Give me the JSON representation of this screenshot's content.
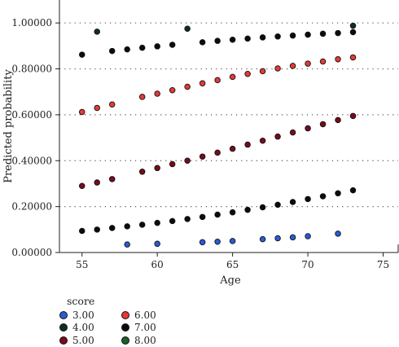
{
  "chart_data": {
    "type": "scatter",
    "xlabel": "Age",
    "ylabel": "Predicted probability",
    "xlim": [
      53.5,
      76
    ],
    "ylim": [
      0,
      1.1
    ],
    "xticks": [
      55,
      60,
      65,
      70,
      75
    ],
    "yticks": [
      0,
      0.2,
      0.4,
      0.6,
      0.8,
      1.0
    ],
    "xtick_labels": [
      "55",
      "60",
      "65",
      "70",
      "75"
    ],
    "ytick_labels": [
      "0.00000",
      "0.20000",
      "0.40000",
      "0.60000",
      "0.80000",
      "1.00000"
    ],
    "grid": "horizontal dotted",
    "legend_title": "score",
    "legend_placement": "bottom-left",
    "series": [
      {
        "name": "3.00",
        "color": "#2a5bd7",
        "points": [
          [
            58,
            0.035
          ],
          [
            60,
            0.038
          ],
          [
            63,
            0.045
          ],
          [
            64,
            0.047
          ],
          [
            65,
            0.05
          ],
          [
            67,
            0.058
          ],
          [
            68,
            0.062
          ],
          [
            69,
            0.066
          ],
          [
            70,
            0.071
          ],
          [
            72,
            0.082
          ]
        ]
      },
      {
        "name": "4.00",
        "color": "#0e2e2a",
        "points": [
          [
            56,
            0.962
          ],
          [
            62,
            0.975
          ],
          [
            73,
            0.988
          ]
        ]
      },
      {
        "name": "5.00",
        "color": "#7a0a1e",
        "points": [
          [
            55,
            0.29
          ],
          [
            56,
            0.305
          ],
          [
            57,
            0.32
          ],
          [
            59,
            0.352
          ],
          [
            60,
            0.368
          ],
          [
            61,
            0.385
          ],
          [
            62,
            0.4
          ],
          [
            63,
            0.418
          ],
          [
            64,
            0.435
          ],
          [
            65,
            0.452
          ],
          [
            66,
            0.47
          ],
          [
            67,
            0.487
          ],
          [
            68,
            0.505
          ],
          [
            69,
            0.523
          ],
          [
            70,
            0.541
          ],
          [
            71,
            0.559
          ],
          [
            72,
            0.577
          ],
          [
            73,
            0.595
          ]
        ]
      },
      {
        "name": "6.00",
        "color": "#e53935",
        "points": [
          [
            55,
            0.612
          ],
          [
            56,
            0.63
          ],
          [
            57,
            0.645
          ],
          [
            59,
            0.678
          ],
          [
            60,
            0.692
          ],
          [
            61,
            0.707
          ],
          [
            62,
            0.722
          ],
          [
            63,
            0.737
          ],
          [
            64,
            0.751
          ],
          [
            65,
            0.765
          ],
          [
            66,
            0.778
          ],
          [
            67,
            0.79
          ],
          [
            68,
            0.802
          ],
          [
            69,
            0.813
          ],
          [
            70,
            0.823
          ],
          [
            71,
            0.832
          ],
          [
            72,
            0.842
          ],
          [
            73,
            0.85
          ]
        ]
      },
      {
        "name": "7.00",
        "color": "#120a0a",
        "points": [
          [
            55,
            0.094
          ],
          [
            56,
            0.1
          ],
          [
            57,
            0.107
          ],
          [
            58,
            0.114
          ],
          [
            59,
            0.121
          ],
          [
            60,
            0.129
          ],
          [
            61,
            0.137
          ],
          [
            62,
            0.146
          ],
          [
            63,
            0.155
          ],
          [
            64,
            0.165
          ],
          [
            65,
            0.175
          ],
          [
            66,
            0.186
          ],
          [
            67,
            0.197
          ],
          [
            68,
            0.208
          ],
          [
            69,
            0.22
          ],
          [
            70,
            0.233
          ],
          [
            71,
            0.245
          ],
          [
            72,
            0.258
          ],
          [
            73,
            0.271
          ],
          [
            55,
            0.862
          ],
          [
            57,
            0.878
          ],
          [
            58,
            0.885
          ],
          [
            59,
            0.892
          ],
          [
            60,
            0.898
          ],
          [
            61,
            0.905
          ],
          [
            63,
            0.916
          ],
          [
            64,
            0.922
          ],
          [
            65,
            0.927
          ],
          [
            66,
            0.932
          ],
          [
            67,
            0.937
          ],
          [
            68,
            0.941
          ],
          [
            69,
            0.945
          ],
          [
            70,
            0.949
          ],
          [
            71,
            0.953
          ],
          [
            72,
            0.956
          ],
          [
            73,
            0.96
          ]
        ]
      },
      {
        "name": "8.00",
        "color": "#1e5e2a",
        "points": []
      }
    ]
  }
}
